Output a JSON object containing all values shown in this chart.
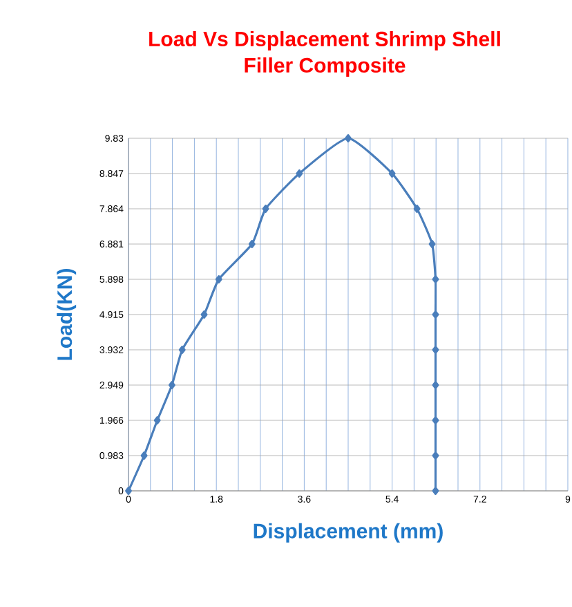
{
  "chart_data": {
    "type": "line",
    "title": "Load Vs Displacement Shrimp Shell\nFiller Composite",
    "xlabel": "Displacement (mm)",
    "ylabel": "Load(KN)",
    "series": [
      {
        "color": "#4a7ebb",
        "x": [
          0,
          0.32,
          0.59,
          0.89,
          1.1,
          1.55,
          1.85,
          2.53,
          2.81,
          3.5,
          4.5,
          5.4,
          5.91,
          6.22,
          6.29,
          6.29,
          6.29,
          6.29,
          6.29,
          6.29,
          6.29
        ],
        "values": [
          0,
          0.983,
          1.966,
          2.949,
          3.932,
          4.915,
          5.898,
          6.881,
          7.864,
          8.847,
          9.83,
          8.847,
          7.864,
          6.881,
          5.898,
          4.915,
          3.932,
          2.949,
          1.966,
          0.983,
          0
        ]
      }
    ],
    "xlim": [
      0,
      9
    ],
    "xticks": [
      0,
      {
        "value": 0.45,
        "label": null
      },
      {
        "value": 0.9,
        "label": null
      },
      {
        "value": 1.35,
        "label": null
      },
      1.8,
      {
        "value": 2.25,
        "label": null
      },
      {
        "value": 2.7,
        "label": null
      },
      {
        "value": 3.15,
        "label": null
      },
      3.6,
      {
        "value": 4.05,
        "label": null
      },
      {
        "value": 4.5,
        "label": null
      },
      {
        "value": 4.95,
        "label": null
      },
      5.4,
      {
        "value": 5.85,
        "label": null
      },
      {
        "value": 6.3,
        "label": null
      },
      {
        "value": 6.75,
        "label": null
      },
      7.2,
      {
        "value": 7.65,
        "label": null
      },
      {
        "value": 8.1,
        "label": null
      },
      {
        "value": 8.55,
        "label": null
      },
      9
    ],
    "ylim": [
      0,
      9.83
    ],
    "yticks": [
      0,
      0.983,
      1.966,
      2.949,
      3.932,
      4.915,
      5.898,
      6.881,
      7.864,
      8.847,
      9.83
    ],
    "grid": true,
    "marker": "diamond",
    "line_style": "solid"
  }
}
